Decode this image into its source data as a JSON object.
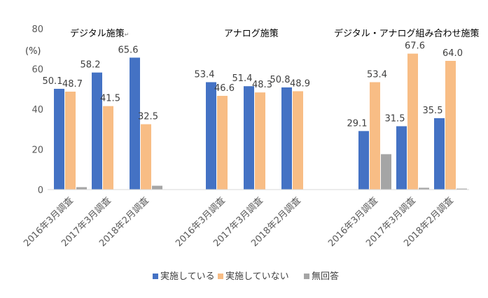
{
  "chart_data": {
    "type": "bar",
    "unit_label": "(%)",
    "ylim": [
      0,
      80
    ],
    "yticks": [
      0,
      20,
      40,
      60,
      80
    ],
    "grid": false,
    "legend_position": "bottom",
    "colors": [
      "#4472C4",
      "#F8BD85",
      "#A5A5A5"
    ],
    "series_names": [
      "実施している",
      "実施していない",
      "無回答"
    ],
    "groups": [
      {
        "title": "デジタル施策",
        "title_mark": "↵",
        "categories": [
          "2016年3月調査",
          "2017年3月調査",
          "2018年2月調査"
        ],
        "values": [
          [
            50.1,
            48.7,
            1.2
          ],
          [
            58.2,
            41.5,
            0
          ],
          [
            65.6,
            32.5,
            1.9
          ]
        ],
        "labels": [
          [
            "50.1",
            "48.7",
            ""
          ],
          [
            "58.2",
            "41.5",
            ""
          ],
          [
            "65.6",
            "32.5",
            ""
          ]
        ]
      },
      {
        "title": "アナログ施策",
        "title_mark": "",
        "categories": [
          "2016年3月調査",
          "2017年3月調査",
          "2018年2月調査"
        ],
        "values": [
          [
            53.4,
            46.6,
            0
          ],
          [
            51.4,
            48.3,
            0
          ],
          [
            50.8,
            48.9,
            0
          ]
        ],
        "labels": [
          [
            "53.4",
            "46.6",
            ""
          ],
          [
            "51.4",
            "48.3",
            ""
          ],
          [
            "50.8",
            "48.9",
            ""
          ]
        ]
      },
      {
        "title": "デジタル・アナログ組み合わせ施策",
        "title_mark": "",
        "categories": [
          "2016年3月調査",
          "2017年3月調査",
          "2018年2月調査"
        ],
        "values": [
          [
            29.1,
            53.4,
            17.6
          ],
          [
            31.5,
            67.6,
            0.9
          ],
          [
            35.5,
            64.0,
            0.5
          ]
        ],
        "labels": [
          [
            "29.1",
            "53.4",
            ""
          ],
          [
            "31.5",
            "67.6",
            ""
          ],
          [
            "35.5",
            "64.0",
            ""
          ]
        ]
      }
    ]
  }
}
